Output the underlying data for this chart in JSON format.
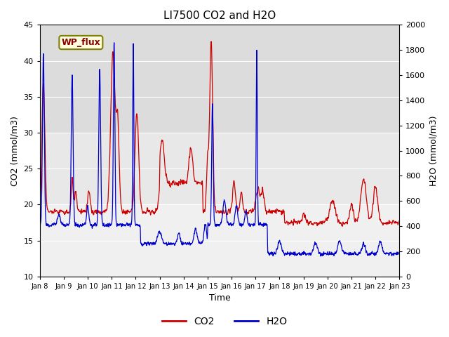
{
  "title": "LI7500 CO2 and H2O",
  "xlabel": "Time",
  "ylabel_left": "CO2 (mmol/m3)",
  "ylabel_right": "H2O (mmol/m3)",
  "ylim_left": [
    10,
    45
  ],
  "ylim_right": [
    0,
    2000
  ],
  "yticks_left": [
    10,
    15,
    20,
    25,
    30,
    35,
    40,
    45
  ],
  "yticks_right": [
    0,
    200,
    400,
    600,
    800,
    1000,
    1200,
    1400,
    1600,
    1800,
    2000
  ],
  "annotation_text": "WP_flux",
  "legend_co2": "CO2",
  "legend_h2o": "H2O",
  "co2_color": "#cc0000",
  "h2o_color": "#0000cc",
  "xtick_labels": [
    "Jan 8",
    "Jan 9",
    "Jan 10",
    "Jan 11",
    "Jan 12",
    "Jan 13",
    "Jan 14",
    "Jan 15",
    "Jan 16",
    "Jan 17",
    "Jan 18",
    "Jan 19",
    "Jan 20",
    "Jan 21",
    "Jan 22",
    "Jan 23"
  ],
  "band_colors": [
    "#dcdcdc",
    "#e8e8e8",
    "#f0f0f0"
  ],
  "band_ranges": [
    [
      30,
      45
    ],
    [
      20,
      30
    ],
    [
      10,
      20
    ]
  ]
}
